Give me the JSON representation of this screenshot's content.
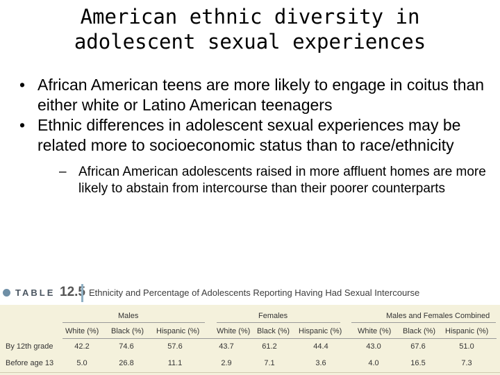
{
  "title": {
    "line1": "American ethnic diversity in",
    "line2": "adolescent sexual experiences"
  },
  "bullets": [
    {
      "marker": "•",
      "text": "African American teens are more likely to engage in coitus than either white or Latino American teenagers"
    },
    {
      "marker": "•",
      "text": "Ethnic differences in adolescent sexual experiences may be related more to socioeconomic status than to race/ethnicity"
    }
  ],
  "sub_bullet": {
    "marker": "–",
    "text": "African American adolescents raised in more affluent homes are more likely to abstain from intercourse than their poorer counterparts"
  },
  "table": {
    "label_word": "TABLE",
    "number": "12.5",
    "caption": "Ethnicity and Percentage of Adolescents Reporting Having Had Sexual Intercourse",
    "groups": [
      "Males",
      "Females",
      "Males and Females Combined"
    ],
    "columns": [
      "White (%)",
      "Black (%)",
      "Hispanic (%)",
      "White (%)",
      "Black (%)",
      "Hispanic (%)",
      "White (%)",
      "Black (%)",
      "Hispanic (%)"
    ],
    "rows": [
      {
        "label": "By 12th grade",
        "values": [
          "42.2",
          "74.6",
          "57.6",
          "43.7",
          "61.2",
          "44.4",
          "43.0",
          "67.6",
          "51.0"
        ]
      },
      {
        "label": "Before age 13",
        "values": [
          "5.0",
          "26.8",
          "11.1",
          "2.9",
          "7.1",
          "3.6",
          "4.0",
          "16.5",
          "7.3"
        ]
      }
    ]
  }
}
